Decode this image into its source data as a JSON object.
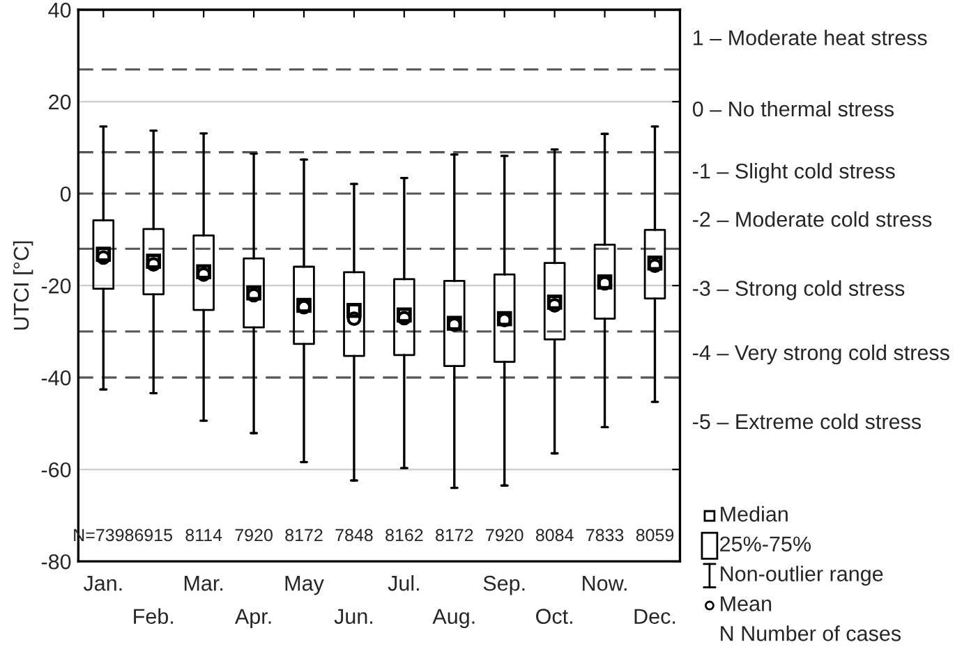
{
  "chart_data": {
    "type": "box",
    "ylabel": "UTCI [°C]",
    "categories": [
      "Jan.",
      "Feb.",
      "Mar.",
      "Apr.",
      "May",
      "Jun.",
      "Jul.",
      "Aug.",
      "Sep.",
      "Oct.",
      "Now.",
      "Dec."
    ],
    "boxes": [
      {
        "low": -42.6,
        "q1": -20.7,
        "median": -13.2,
        "q3": -5.8,
        "high": 14.6,
        "mean": -13.9
      },
      {
        "low": -43.4,
        "q1": -21.9,
        "median": -14.7,
        "q3": -7.7,
        "high": 13.7,
        "mean": -15.4
      },
      {
        "low": -49.4,
        "q1": -25.3,
        "median": -17.0,
        "q3": -9.1,
        "high": 13.1,
        "mean": -17.6
      },
      {
        "low": -52.1,
        "q1": -29.1,
        "median": -21.6,
        "q3": -14.1,
        "high": 8.7,
        "mean": -22.1
      },
      {
        "low": -58.4,
        "q1": -32.7,
        "median": -24.3,
        "q3": -15.9,
        "high": 7.4,
        "mean": -24.7
      },
      {
        "low": -62.4,
        "q1": -35.3,
        "median": -25.4,
        "q3": -17.1,
        "high": 2.1,
        "mean": -27.2
      },
      {
        "low": -59.7,
        "q1": -35.1,
        "median": -26.4,
        "q3": -18.6,
        "high": 3.4,
        "mean": -27.1
      },
      {
        "low": -64.0,
        "q1": -37.5,
        "median": -28.2,
        "q3": -19.0,
        "high": 8.5,
        "mean": -28.5
      },
      {
        "low": -63.5,
        "q1": -36.6,
        "median": -27.2,
        "q3": -17.6,
        "high": 8.2,
        "mean": -27.5
      },
      {
        "low": -56.5,
        "q1": -31.7,
        "median": -23.6,
        "q3": -15.1,
        "high": 9.6,
        "mean": -24.3
      },
      {
        "low": -50.8,
        "q1": -27.2,
        "median": -19.2,
        "q3": -11.1,
        "high": 13.0,
        "mean": -19.5
      },
      {
        "low": -45.3,
        "q1": -22.8,
        "median": -15.1,
        "q3": -7.9,
        "high": 14.6,
        "mean": -15.7
      }
    ],
    "ylim": [
      -80,
      40
    ],
    "yticks": [
      -80,
      -60,
      -40,
      -20,
      0,
      20,
      40
    ],
    "grid": "y",
    "ref_lines": [
      {
        "axis": "y",
        "value": 27,
        "line_style": "dashed"
      },
      {
        "axis": "y",
        "value": 9,
        "line_style": "dashed"
      },
      {
        "axis": "y",
        "value": 0,
        "line_style": "dashed"
      },
      {
        "axis": "y",
        "value": -12,
        "line_style": "dashed"
      },
      {
        "axis": "y",
        "value": -30,
        "line_style": "dashed"
      },
      {
        "axis": "y",
        "value": -40,
        "line_style": "dashed"
      }
    ],
    "annotations": [
      "1 – Moderate heat stress",
      "0 – No thermal stress",
      "-1 – Slight cold stress",
      "-2 – Moderate cold stress",
      "-3 – Strong cold stress",
      "-4 – Very strong cold stress",
      "-5 – Extreme cold stress",
      "N=7398",
      "6915",
      "8114",
      "7920",
      "8172",
      "7848",
      "8162",
      "8172",
      "7920",
      "8084",
      "7833",
      "8059",
      "Median",
      "25%-75%",
      "Non-outlier range",
      "Mean",
      "N Number of cases"
    ]
  }
}
